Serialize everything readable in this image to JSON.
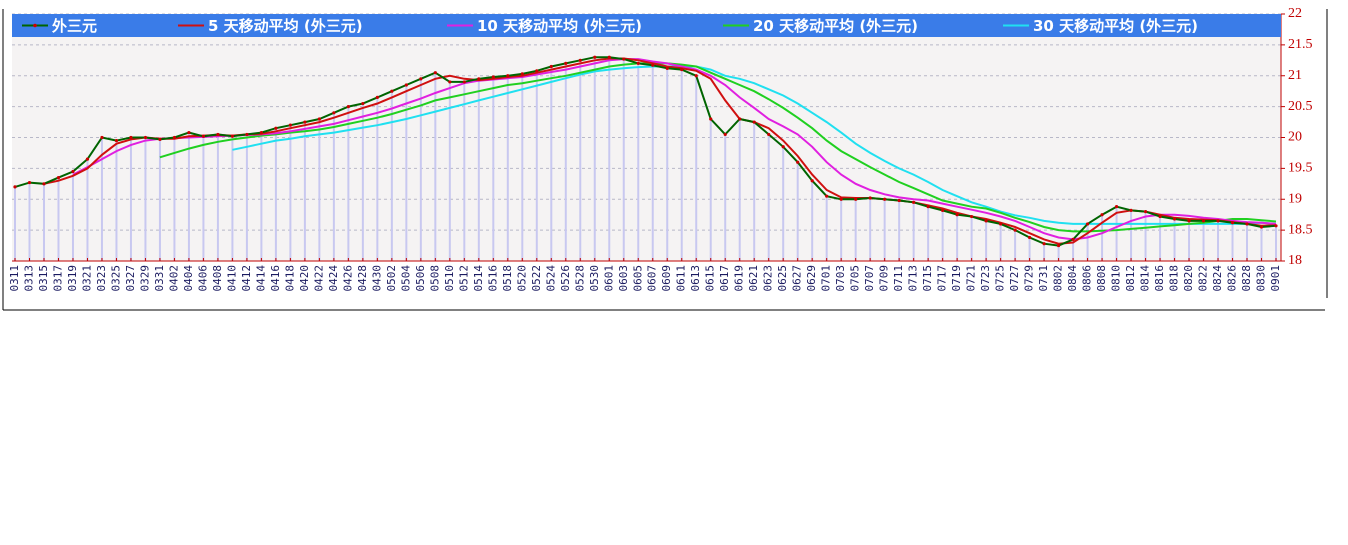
{
  "chart_data": {
    "type": "line",
    "categories": [
      "0311",
      "0313",
      "0315",
      "0317",
      "0319",
      "0321",
      "0323",
      "0325",
      "0327",
      "0329",
      "0331",
      "0402",
      "0404",
      "0406",
      "0408",
      "0410",
      "0412",
      "0414",
      "0416",
      "0418",
      "0420",
      "0422",
      "0424",
      "0426",
      "0428",
      "0430",
      "0502",
      "0504",
      "0506",
      "0508",
      "0510",
      "0512",
      "0514",
      "0516",
      "0518",
      "0520",
      "0522",
      "0524",
      "0526",
      "0528",
      "0530",
      "0601",
      "0603",
      "0605",
      "0607",
      "0609",
      "0611",
      "0613",
      "0615",
      "0617",
      "0619",
      "0621",
      "0623",
      "0625",
      "0627",
      "0629",
      "0701",
      "0703",
      "0705",
      "0707",
      "0709",
      "0711",
      "0713",
      "0715",
      "0717",
      "0719",
      "0721",
      "0723",
      "0725",
      "0727",
      "0729",
      "0731",
      "0802",
      "0804",
      "0806",
      "0808",
      "0810",
      "0812",
      "0814",
      "0816",
      "0818",
      "0820",
      "0822",
      "0824",
      "0826",
      "0828",
      "0830",
      "0901"
    ],
    "series": [
      {
        "name": "外三元",
        "color": "#006400",
        "marker_color": "#cc0000",
        "bar_color": "#c8c8f0",
        "values": [
          19.2,
          19.27,
          19.25,
          19.35,
          19.45,
          19.65,
          20.0,
          19.95,
          20.0,
          20.0,
          19.97,
          20.0,
          20.08,
          20.02,
          20.05,
          20.02,
          20.05,
          20.08,
          20.15,
          20.2,
          20.25,
          20.3,
          20.4,
          20.5,
          20.55,
          20.65,
          20.75,
          20.85,
          20.95,
          21.05,
          20.9,
          20.9,
          20.95,
          20.98,
          21.0,
          21.03,
          21.08,
          21.15,
          21.2,
          21.25,
          21.3,
          21.3,
          21.27,
          21.2,
          21.17,
          21.12,
          21.1,
          21.0,
          20.3,
          20.05,
          20.3,
          20.25,
          20.05,
          19.85,
          19.6,
          19.3,
          19.05,
          19.0,
          19.0,
          19.02,
          19.0,
          18.98,
          18.95,
          18.88,
          18.82,
          18.75,
          18.72,
          18.65,
          18.6,
          18.5,
          18.38,
          18.28,
          18.25,
          18.35,
          18.6,
          18.75,
          18.88,
          18.82,
          18.8,
          18.72,
          18.68,
          18.65,
          18.65,
          18.65,
          18.62,
          18.6,
          18.55,
          18.57
        ]
      },
      {
        "name": "5 天移动平均 (外三元)",
        "color": "#d01010",
        "values": [
          null,
          null,
          19.25,
          19.3,
          19.38,
          19.5,
          19.72,
          19.9,
          19.97,
          20.0,
          19.98,
          19.98,
          20.02,
          20.03,
          20.04,
          20.03,
          20.05,
          20.06,
          20.1,
          20.15,
          20.2,
          20.25,
          20.32,
          20.4,
          20.48,
          20.55,
          20.65,
          20.75,
          20.85,
          20.95,
          21.0,
          20.95,
          20.93,
          20.95,
          20.98,
          21.0,
          21.05,
          21.1,
          21.15,
          21.2,
          21.25,
          21.28,
          21.28,
          21.25,
          21.2,
          21.15,
          21.12,
          21.08,
          20.95,
          20.6,
          20.3,
          20.25,
          20.15,
          19.95,
          19.7,
          19.4,
          19.15,
          19.03,
          19.02,
          19.02,
          19.0,
          18.98,
          18.95,
          18.9,
          18.85,
          18.78,
          18.72,
          18.68,
          18.62,
          18.55,
          18.45,
          18.35,
          18.28,
          18.3,
          18.45,
          18.62,
          18.78,
          18.82,
          18.8,
          18.75,
          18.7,
          18.68,
          18.67,
          18.66,
          18.63,
          18.6,
          18.57,
          18.58
        ]
      },
      {
        "name": "10 天移动平均 (外三元)",
        "color": "#e020e0",
        "values": [
          null,
          null,
          null,
          null,
          19.4,
          19.52,
          19.65,
          19.78,
          19.88,
          19.95,
          19.98,
          19.99,
          20.0,
          20.01,
          20.02,
          20.03,
          20.04,
          20.05,
          20.07,
          20.1,
          20.14,
          20.18,
          20.22,
          20.28,
          20.34,
          20.4,
          20.47,
          20.55,
          20.63,
          20.72,
          20.8,
          20.88,
          20.92,
          20.94,
          20.96,
          20.98,
          21.02,
          21.06,
          21.1,
          21.15,
          21.2,
          21.25,
          21.27,
          21.27,
          21.23,
          21.2,
          21.15,
          21.1,
          21.0,
          20.85,
          20.65,
          20.48,
          20.3,
          20.18,
          20.05,
          19.85,
          19.6,
          19.4,
          19.25,
          19.15,
          19.08,
          19.03,
          19.0,
          18.98,
          18.93,
          18.88,
          18.83,
          18.78,
          18.72,
          18.65,
          18.55,
          18.45,
          18.38,
          18.35,
          18.38,
          18.45,
          18.55,
          18.65,
          18.72,
          18.75,
          18.75,
          18.73,
          18.7,
          18.68,
          18.65,
          18.63,
          18.62,
          18.6
        ]
      },
      {
        "name": "20 天移动平均 (外三元)",
        "color": "#20d020",
        "values": [
          null,
          null,
          null,
          null,
          null,
          null,
          null,
          null,
          null,
          null,
          19.68,
          19.75,
          19.82,
          19.88,
          19.93,
          19.97,
          20.0,
          20.03,
          20.05,
          20.08,
          20.1,
          20.13,
          20.17,
          20.22,
          20.27,
          20.32,
          20.38,
          20.45,
          20.52,
          20.6,
          20.65,
          20.7,
          20.75,
          20.8,
          20.85,
          20.88,
          20.92,
          20.96,
          21.0,
          21.05,
          21.1,
          21.15,
          21.18,
          21.2,
          21.2,
          21.2,
          21.18,
          21.15,
          21.05,
          20.95,
          20.85,
          20.75,
          20.62,
          20.48,
          20.32,
          20.15,
          19.95,
          19.78,
          19.65,
          19.52,
          19.4,
          19.28,
          19.18,
          19.08,
          18.98,
          18.93,
          18.88,
          18.85,
          18.78,
          18.7,
          18.63,
          18.55,
          18.5,
          18.48,
          18.48,
          18.49,
          18.5,
          18.52,
          18.54,
          18.56,
          18.58,
          18.6,
          18.62,
          18.65,
          18.68,
          18.68,
          18.66,
          18.64
        ]
      },
      {
        "name": "30 天移动平均 (外三元)",
        "color": "#20e0f0",
        "values": [
          null,
          null,
          null,
          null,
          null,
          null,
          null,
          null,
          null,
          null,
          null,
          null,
          null,
          null,
          null,
          19.8,
          19.85,
          19.9,
          19.95,
          19.98,
          20.02,
          20.05,
          20.08,
          20.12,
          20.16,
          20.2,
          20.25,
          20.3,
          20.36,
          20.42,
          20.48,
          20.54,
          20.6,
          20.66,
          20.72,
          20.78,
          20.84,
          20.9,
          20.96,
          21.02,
          21.07,
          21.1,
          21.12,
          21.14,
          21.15,
          21.15,
          21.15,
          21.15,
          21.1,
          21.0,
          20.95,
          20.88,
          20.78,
          20.68,
          20.55,
          20.4,
          20.25,
          20.08,
          19.9,
          19.75,
          19.62,
          19.5,
          19.4,
          19.28,
          19.15,
          19.05,
          18.95,
          18.88,
          18.8,
          18.74,
          18.7,
          18.65,
          18.62,
          18.6,
          18.6,
          18.6,
          18.6,
          18.6,
          18.6,
          18.6,
          18.6,
          18.6,
          18.6,
          18.6,
          18.6,
          18.6,
          18.62,
          18.6
        ]
      }
    ],
    "ylim": [
      18,
      22
    ],
    "yticks": [
      18,
      18.5,
      19,
      19.5,
      20,
      20.5,
      21,
      21.5,
      22
    ],
    "y_axis_side": "right",
    "grid": true,
    "legend_color": "#3a7ce8"
  }
}
